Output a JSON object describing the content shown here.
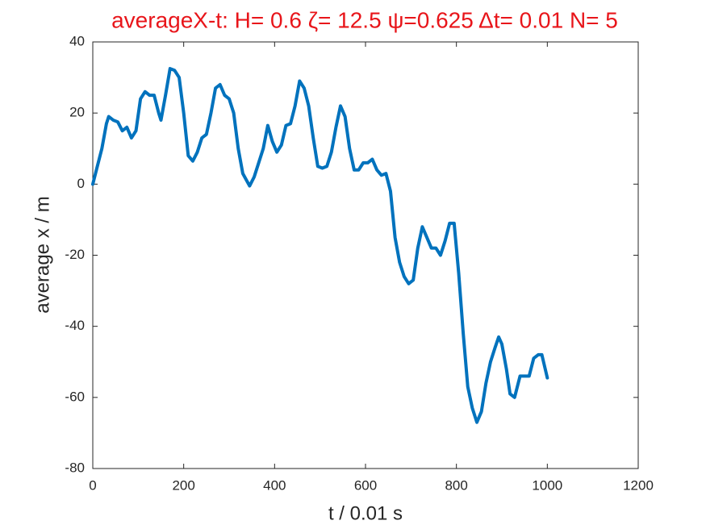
{
  "chart_data": {
    "type": "line",
    "title": "averageX-t:  H= 0.6 ζ= 12.5 ψ=0.625 Δt= 0.01 N= 5",
    "x_label": "t / 0.01 s",
    "y_label": "average x / m",
    "x": [
      0,
      10,
      20,
      30,
      35,
      45,
      55,
      65,
      75,
      85,
      95,
      105,
      115,
      125,
      135,
      145,
      150,
      160,
      170,
      180,
      190,
      200,
      210,
      220,
      230,
      240,
      250,
      260,
      270,
      280,
      290,
      300,
      310,
      320,
      330,
      345,
      355,
      365,
      375,
      385,
      395,
      405,
      415,
      425,
      435,
      445,
      455,
      465,
      475,
      485,
      495,
      505,
      515,
      525,
      535,
      545,
      555,
      565,
      575,
      585,
      595,
      605,
      615,
      625,
      635,
      645,
      655,
      665,
      675,
      685,
      695,
      705,
      715,
      725,
      735,
      745,
      755,
      765,
      775,
      785,
      795,
      805,
      815,
      825,
      835,
      845,
      855,
      865,
      875,
      885,
      893,
      900,
      910,
      918,
      928,
      940,
      950,
      960,
      970,
      980,
      988,
      1000
    ],
    "values": [
      0,
      5,
      10,
      17,
      19,
      18,
      17.5,
      15,
      16,
      13,
      15,
      24,
      26,
      25,
      25,
      20,
      18,
      25,
      32.5,
      32,
      30,
      20,
      8,
      6.5,
      9,
      13,
      14,
      20,
      27,
      28,
      25,
      24,
      20,
      10,
      3,
      -0.5,
      2,
      6,
      10,
      16.5,
      12,
      9,
      11,
      16.5,
      17,
      22,
      29,
      27,
      22,
      13,
      5,
      4.5,
      5,
      9,
      16,
      22,
      19,
      10,
      4,
      4,
      6,
      6,
      7,
      4,
      2.5,
      3,
      -2,
      -15,
      -22,
      -26,
      -28,
      -27,
      -18,
      -12,
      -15,
      -18,
      -18,
      -20,
      -16,
      -11,
      -11,
      -25,
      -42,
      -57,
      -63,
      -67,
      -64,
      -56,
      -50,
      -46,
      -43,
      -45,
      -52,
      -59,
      -60,
      -54,
      -54,
      -54,
      -49,
      -48,
      -48,
      -54.5
    ],
    "color": "#0072bd",
    "xlim": [
      0,
      1200
    ],
    "xticks": [
      0,
      200,
      400,
      600,
      800,
      1000,
      1200
    ],
    "ylim": [
      -80,
      40
    ],
    "yticks": [
      -80,
      -60,
      -40,
      -20,
      0,
      20,
      40
    ],
    "grid": false
  }
}
